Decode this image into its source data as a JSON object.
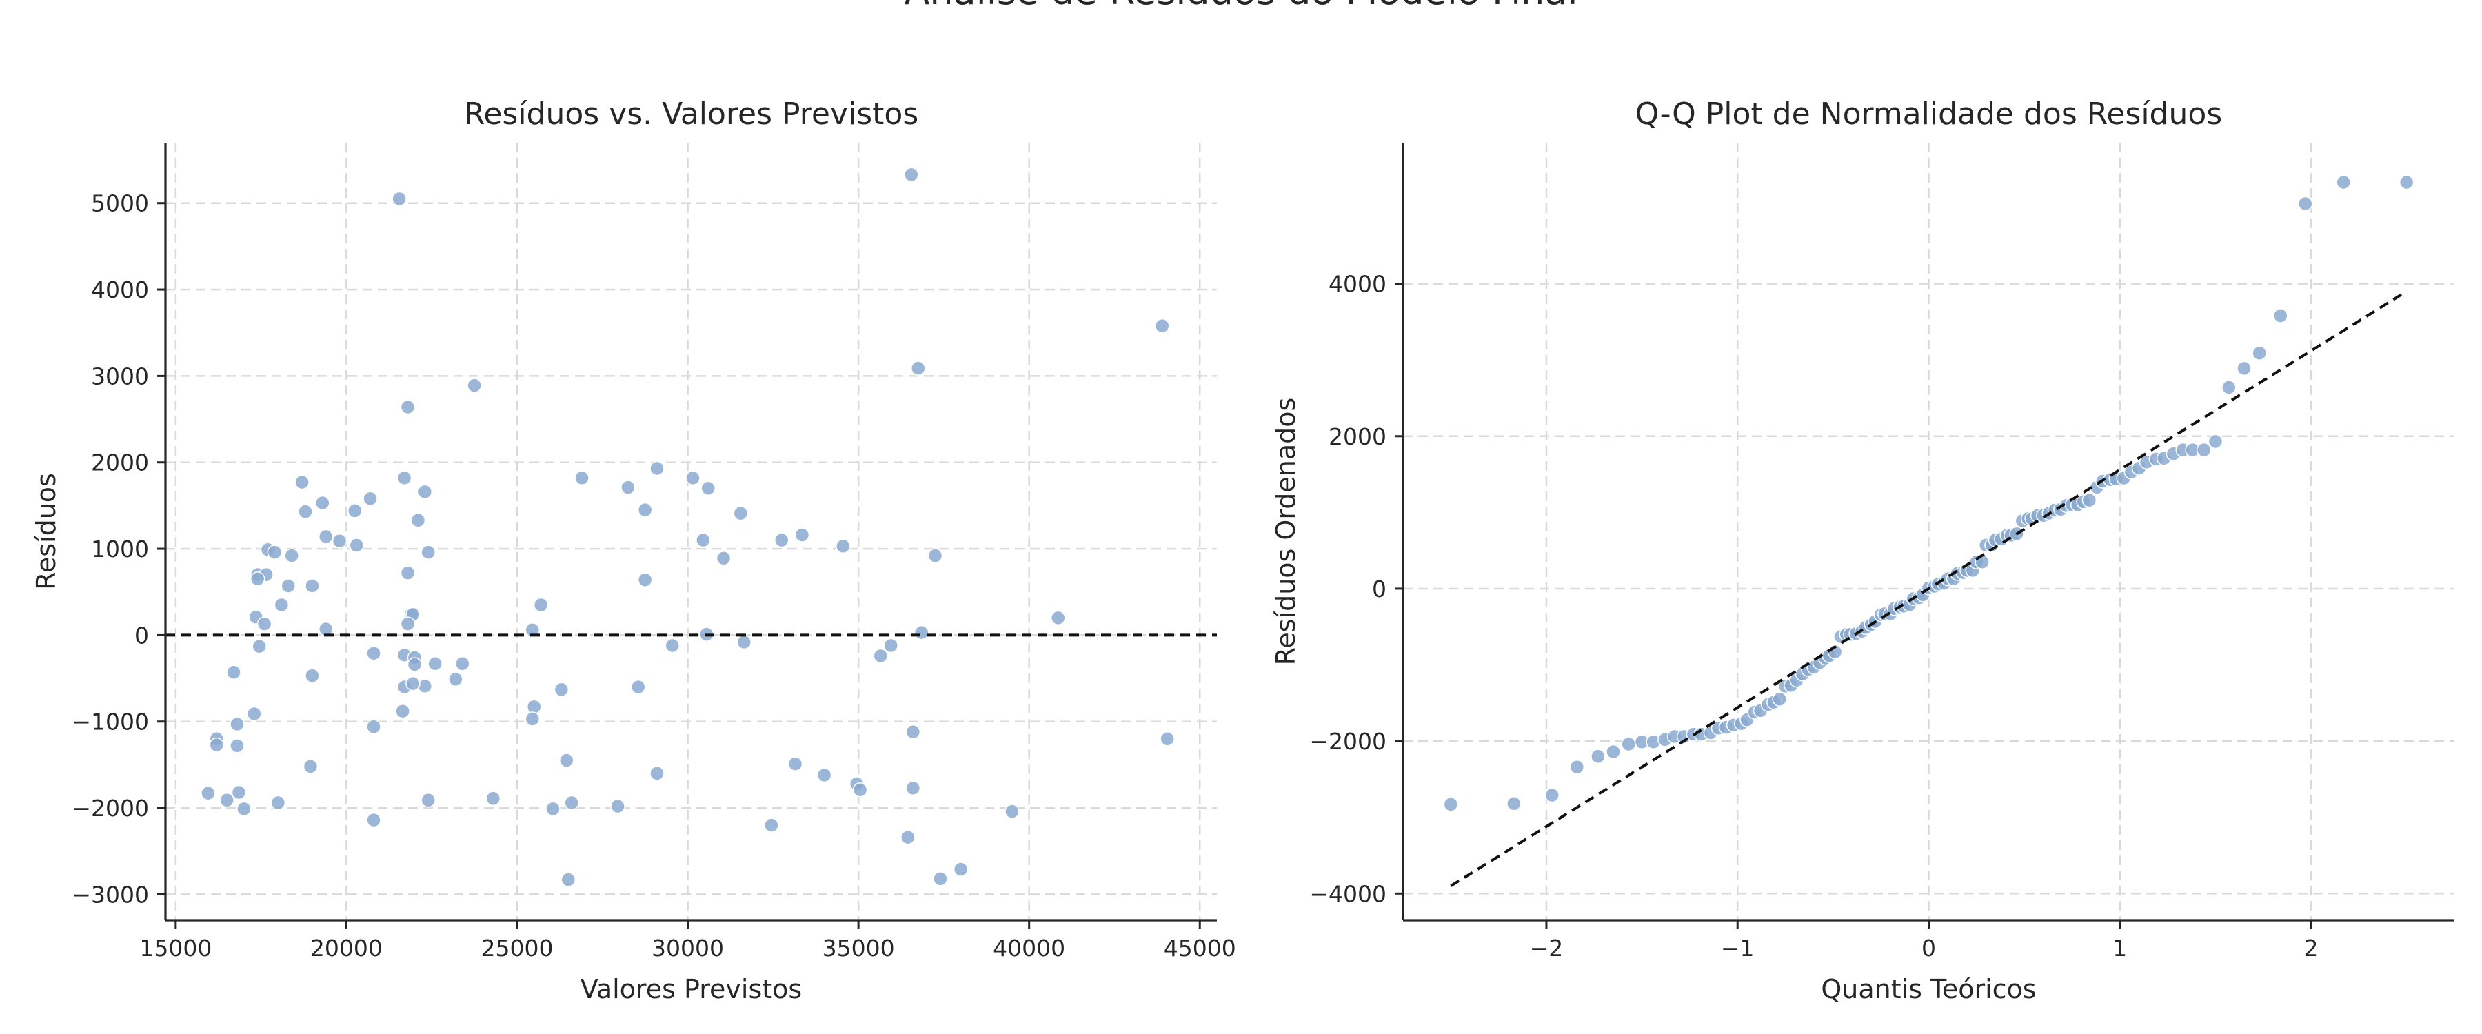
{
  "figure": {
    "suptitle": "Análise de Resíduos do Modelo Final"
  },
  "colors": {
    "points": "#8aa9d0",
    "reference_line": "#111111",
    "grid": "#d9d9d9"
  },
  "chart_data": [
    {
      "type": "scatter",
      "title": "Resíduos vs. Valores Previstos",
      "xlabel": "Valores Previstos",
      "ylabel": "Resíduos",
      "xlim": [
        14700,
        45500
      ],
      "ylim": [
        -3300,
        5700
      ],
      "xticks": [
        15000,
        20000,
        25000,
        30000,
        35000,
        40000,
        45000
      ],
      "yticks": [
        -3000,
        -2000,
        -1000,
        0,
        1000,
        2000,
        3000,
        4000,
        5000
      ],
      "grid": true,
      "reference_line": {
        "kind": "horizontal",
        "y": 0
      },
      "points": [
        [
          21550,
          5050
        ],
        [
          36550,
          5330
        ],
        [
          43900,
          3580
        ],
        [
          36750,
          3090
        ],
        [
          23750,
          2890
        ],
        [
          21800,
          2640
        ],
        [
          18700,
          1770
        ],
        [
          19300,
          1530
        ],
        [
          21700,
          1820
        ],
        [
          20700,
          1580
        ],
        [
          22300,
          1660
        ],
        [
          22100,
          1330
        ],
        [
          18800,
          1430
        ],
        [
          20250,
          1440
        ],
        [
          19400,
          1140
        ],
        [
          19800,
          1090
        ],
        [
          20300,
          1040
        ],
        [
          22400,
          960
        ],
        [
          17700,
          990
        ],
        [
          17900,
          960
        ],
        [
          18400,
          920
        ],
        [
          17400,
          700
        ],
        [
          17650,
          700
        ],
        [
          17400,
          650
        ],
        [
          18300,
          570
        ],
        [
          19000,
          570
        ],
        [
          18100,
          350
        ],
        [
          21800,
          720
        ],
        [
          21900,
          240
        ],
        [
          21950,
          240
        ],
        [
          21800,
          130
        ],
        [
          17350,
          210
        ],
        [
          17600,
          130
        ],
        [
          19400,
          70
        ],
        [
          17450,
          -130
        ],
        [
          20800,
          -210
        ],
        [
          21700,
          -230
        ],
        [
          22000,
          -260
        ],
        [
          22600,
          -330
        ],
        [
          23400,
          -330
        ],
        [
          22000,
          -340
        ],
        [
          21700,
          -600
        ],
        [
          22300,
          -590
        ],
        [
          21950,
          -560
        ],
        [
          23200,
          -510
        ],
        [
          16700,
          -430
        ],
        [
          19000,
          -470
        ],
        [
          21650,
          -880
        ],
        [
          17300,
          -910
        ],
        [
          16800,
          -1030
        ],
        [
          20800,
          -1060
        ],
        [
          16200,
          -1200
        ],
        [
          16200,
          -1270
        ],
        [
          16800,
          -1280
        ],
        [
          18950,
          -1520
        ],
        [
          15950,
          -1830
        ],
        [
          16500,
          -1910
        ],
        [
          16850,
          -1820
        ],
        [
          17000,
          -2010
        ],
        [
          18000,
          -1940
        ],
        [
          20800,
          -2140
        ],
        [
          22400,
          -1910
        ],
        [
          24300,
          -1890
        ],
        [
          25500,
          -830
        ],
        [
          25700,
          350
        ],
        [
          25450,
          60
        ],
        [
          26900,
          1820
        ],
        [
          25450,
          -970
        ],
        [
          26300,
          -630
        ],
        [
          26450,
          -1450
        ],
        [
          26600,
          -1940
        ],
        [
          26050,
          -2010
        ],
        [
          26500,
          -2830
        ],
        [
          27950,
          -1980
        ],
        [
          28250,
          1710
        ],
        [
          28750,
          1450
        ],
        [
          29100,
          1930
        ],
        [
          28750,
          640
        ],
        [
          29550,
          -120
        ],
        [
          28550,
          -600
        ],
        [
          29100,
          -1600
        ],
        [
          30150,
          1820
        ],
        [
          30600,
          1700
        ],
        [
          30450,
          1100
        ],
        [
          31050,
          890
        ],
        [
          31550,
          1410
        ],
        [
          30550,
          10
        ],
        [
          31650,
          -80
        ],
        [
          32750,
          1100
        ],
        [
          33350,
          1160
        ],
        [
          34550,
          1030
        ],
        [
          32450,
          -2200
        ],
        [
          33150,
          -1490
        ],
        [
          34000,
          -1620
        ],
        [
          34950,
          -1720
        ],
        [
          35050,
          -1790
        ],
        [
          35950,
          -120
        ],
        [
          35650,
          -240
        ],
        [
          36450,
          -2340
        ],
        [
          36600,
          -1120
        ],
        [
          36600,
          -1770
        ],
        [
          36850,
          30
        ],
        [
          37250,
          920
        ],
        [
          37400,
          -2820
        ],
        [
          38000,
          -2710
        ],
        [
          39500,
          -2040
        ],
        [
          40850,
          200
        ],
        [
          44050,
          -1200
        ]
      ]
    },
    {
      "type": "scatter",
      "title": "Q-Q Plot de Normalidade dos Resíduos",
      "xlabel": "Quantis Teóricos",
      "ylabel": "Resíduos Ordenados",
      "xlim": [
        -2.75,
        2.75
      ],
      "ylim": [
        -4350,
        5850
      ],
      "xticks": [
        -2,
        -1,
        0,
        1,
        2
      ],
      "yticks": [
        -4000,
        -2000,
        0,
        2000,
        4000
      ],
      "grid": true,
      "reference_line": {
        "kind": "fit",
        "points": [
          [
            -2.5,
            -3900
          ],
          [
            2.5,
            3900
          ]
        ]
      },
      "points": [
        [
          -2.5,
          -2830
        ],
        [
          -2.17,
          -2820
        ],
        [
          -1.97,
          -2710
        ],
        [
          -1.84,
          -2340
        ],
        [
          -1.73,
          -2200
        ],
        [
          -1.65,
          -2140
        ],
        [
          -1.57,
          -2040
        ],
        [
          -1.5,
          -2010
        ],
        [
          -1.44,
          -2010
        ],
        [
          -1.38,
          -1980
        ],
        [
          -1.33,
          -1940
        ],
        [
          -1.28,
          -1940
        ],
        [
          -1.23,
          -1910
        ],
        [
          -1.19,
          -1910
        ],
        [
          -1.14,
          -1890
        ],
        [
          -1.1,
          -1830
        ],
        [
          -1.06,
          -1820
        ],
        [
          -1.02,
          -1790
        ],
        [
          -0.98,
          -1770
        ],
        [
          -0.95,
          -1720
        ],
        [
          -0.91,
          -1620
        ],
        [
          -0.88,
          -1600
        ],
        [
          -0.84,
          -1520
        ],
        [
          -0.81,
          -1490
        ],
        [
          -0.78,
          -1450
        ],
        [
          -0.75,
          -1280
        ],
        [
          -0.72,
          -1270
        ],
        [
          -0.69,
          -1200
        ],
        [
          -0.66,
          -1120
        ],
        [
          -0.63,
          -1060
        ],
        [
          -0.6,
          -1030
        ],
        [
          -0.57,
          -970
        ],
        [
          -0.54,
          -910
        ],
        [
          -0.52,
          -880
        ],
        [
          -0.49,
          -830
        ],
        [
          -0.46,
          -630
        ],
        [
          -0.43,
          -600
        ],
        [
          -0.41,
          -600
        ],
        [
          -0.38,
          -590
        ],
        [
          -0.35,
          -560
        ],
        [
          -0.33,
          -510
        ],
        [
          -0.3,
          -470
        ],
        [
          -0.28,
          -430
        ],
        [
          -0.25,
          -340
        ],
        [
          -0.23,
          -330
        ],
        [
          -0.2,
          -330
        ],
        [
          -0.18,
          -260
        ],
        [
          -0.15,
          -240
        ],
        [
          -0.13,
          -230
        ],
        [
          -0.1,
          -210
        ],
        [
          -0.08,
          -130
        ],
        [
          -0.05,
          -120
        ],
        [
          -0.03,
          -80
        ],
        [
          0.0,
          10
        ],
        [
          0.03,
          30
        ],
        [
          0.05,
          60
        ],
        [
          0.08,
          70
        ],
        [
          0.1,
          130
        ],
        [
          0.13,
          130
        ],
        [
          0.15,
          200
        ],
        [
          0.18,
          210
        ],
        [
          0.2,
          240
        ],
        [
          0.23,
          240
        ],
        [
          0.25,
          350
        ],
        [
          0.28,
          350
        ],
        [
          0.3,
          570
        ],
        [
          0.33,
          570
        ],
        [
          0.35,
          640
        ],
        [
          0.38,
          650
        ],
        [
          0.41,
          700
        ],
        [
          0.43,
          700
        ],
        [
          0.46,
          720
        ],
        [
          0.49,
          890
        ],
        [
          0.52,
          920
        ],
        [
          0.54,
          920
        ],
        [
          0.57,
          960
        ],
        [
          0.6,
          960
        ],
        [
          0.63,
          990
        ],
        [
          0.66,
          1030
        ],
        [
          0.69,
          1040
        ],
        [
          0.72,
          1090
        ],
        [
          0.75,
          1100
        ],
        [
          0.78,
          1100
        ],
        [
          0.81,
          1140
        ],
        [
          0.84,
          1160
        ],
        [
          0.88,
          1330
        ],
        [
          0.91,
          1410
        ],
        [
          0.95,
          1430
        ],
        [
          0.98,
          1440
        ],
        [
          1.02,
          1450
        ],
        [
          1.06,
          1530
        ],
        [
          1.1,
          1580
        ],
        [
          1.14,
          1660
        ],
        [
          1.19,
          1700
        ],
        [
          1.23,
          1710
        ],
        [
          1.28,
          1770
        ],
        [
          1.33,
          1820
        ],
        [
          1.38,
          1820
        ],
        [
          1.44,
          1820
        ],
        [
          1.5,
          1930
        ],
        [
          1.57,
          2640
        ],
        [
          1.65,
          2890
        ],
        [
          1.73,
          3090
        ],
        [
          1.84,
          3580
        ],
        [
          1.97,
          5050
        ],
        [
          2.17,
          5330
        ],
        [
          2.5,
          5330
        ]
      ]
    }
  ]
}
